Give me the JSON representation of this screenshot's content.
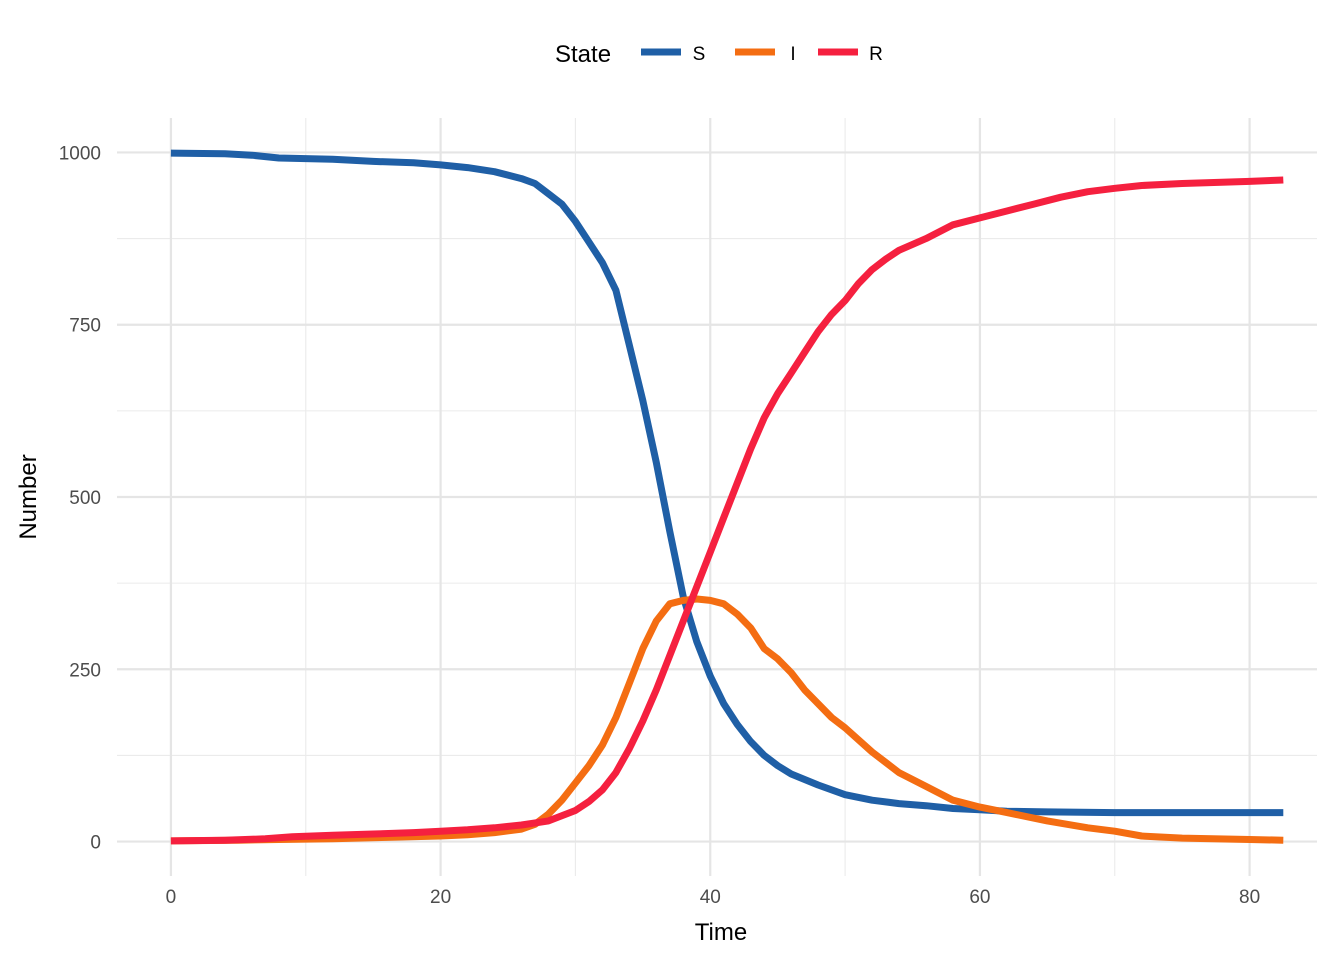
{
  "chart_data": {
    "type": "line",
    "xlabel": "Time",
    "ylabel": "Number",
    "xlim": [
      -4,
      85
    ],
    "ylim": [
      -50,
      1050
    ],
    "x_ticks": [
      0,
      20,
      40,
      60,
      80
    ],
    "x_tick_labels": [
      "0",
      "20",
      "40",
      "60",
      "80"
    ],
    "y_ticks": [
      0,
      250,
      500,
      750,
      1000
    ],
    "y_tick_labels": [
      "0",
      "250",
      "500",
      "750",
      "1000"
    ],
    "grid": true,
    "legend": {
      "title": "State",
      "position": "top"
    },
    "series": [
      {
        "name": "S",
        "color": "#1f5fa6",
        "points": [
          [
            0,
            999
          ],
          [
            4,
            998
          ],
          [
            6,
            996
          ],
          [
            8,
            992
          ],
          [
            12,
            990
          ],
          [
            15,
            987
          ],
          [
            18,
            985
          ],
          [
            20,
            982
          ],
          [
            22,
            978
          ],
          [
            24,
            972
          ],
          [
            26,
            962
          ],
          [
            27,
            955
          ],
          [
            28,
            940
          ],
          [
            29,
            925
          ],
          [
            30,
            900
          ],
          [
            31,
            870
          ],
          [
            32,
            840
          ],
          [
            33,
            800
          ],
          [
            34,
            720
          ],
          [
            35,
            640
          ],
          [
            36,
            550
          ],
          [
            37,
            450
          ],
          [
            38,
            355
          ],
          [
            39,
            290
          ],
          [
            40,
            240
          ],
          [
            41,
            200
          ],
          [
            42,
            170
          ],
          [
            43,
            145
          ],
          [
            44,
            125
          ],
          [
            45,
            110
          ],
          [
            46,
            98
          ],
          [
            48,
            82
          ],
          [
            50,
            68
          ],
          [
            52,
            60
          ],
          [
            54,
            55
          ],
          [
            56,
            52
          ],
          [
            58,
            48
          ],
          [
            60,
            46
          ],
          [
            62,
            44
          ],
          [
            65,
            43
          ],
          [
            70,
            42
          ],
          [
            75,
            42
          ],
          [
            82.5,
            42
          ]
        ]
      },
      {
        "name": "I",
        "color": "#f46d12",
        "points": [
          [
            0,
            1
          ],
          [
            5,
            2
          ],
          [
            8,
            3
          ],
          [
            12,
            4
          ],
          [
            16,
            6
          ],
          [
            20,
            8
          ],
          [
            22,
            10
          ],
          [
            24,
            13
          ],
          [
            26,
            18
          ],
          [
            27,
            25
          ],
          [
            28,
            40
          ],
          [
            29,
            60
          ],
          [
            30,
            85
          ],
          [
            31,
            110
          ],
          [
            32,
            140
          ],
          [
            33,
            180
          ],
          [
            34,
            230
          ],
          [
            35,
            280
          ],
          [
            36,
            320
          ],
          [
            37,
            345
          ],
          [
            38,
            350
          ],
          [
            39,
            352
          ],
          [
            40,
            350
          ],
          [
            41,
            345
          ],
          [
            42,
            330
          ],
          [
            43,
            310
          ],
          [
            44,
            280
          ],
          [
            45,
            265
          ],
          [
            46,
            245
          ],
          [
            47,
            220
          ],
          [
            48,
            200
          ],
          [
            49,
            180
          ],
          [
            50,
            165
          ],
          [
            52,
            130
          ],
          [
            54,
            100
          ],
          [
            56,
            80
          ],
          [
            58,
            60
          ],
          [
            60,
            50
          ],
          [
            62,
            42
          ],
          [
            65,
            30
          ],
          [
            68,
            20
          ],
          [
            70,
            15
          ],
          [
            72,
            8
          ],
          [
            75,
            5
          ],
          [
            80,
            3
          ],
          [
            82.5,
            2
          ]
        ]
      },
      {
        "name": "R",
        "color": "#f5203f",
        "points": [
          [
            0,
            1
          ],
          [
            4,
            2
          ],
          [
            7,
            4
          ],
          [
            9,
            7
          ],
          [
            12,
            9
          ],
          [
            15,
            11
          ],
          [
            18,
            13
          ],
          [
            20,
            15
          ],
          [
            22,
            17
          ],
          [
            24,
            20
          ],
          [
            26,
            24
          ],
          [
            28,
            30
          ],
          [
            30,
            45
          ],
          [
            31,
            58
          ],
          [
            32,
            75
          ],
          [
            33,
            100
          ],
          [
            34,
            135
          ],
          [
            35,
            175
          ],
          [
            36,
            220
          ],
          [
            37,
            270
          ],
          [
            38,
            320
          ],
          [
            39,
            370
          ],
          [
            40,
            420
          ],
          [
            41,
            470
          ],
          [
            42,
            520
          ],
          [
            43,
            570
          ],
          [
            44,
            615
          ],
          [
            45,
            650
          ],
          [
            46,
            680
          ],
          [
            47,
            710
          ],
          [
            48,
            740
          ],
          [
            49,
            765
          ],
          [
            50,
            785
          ],
          [
            51,
            810
          ],
          [
            52,
            830
          ],
          [
            53,
            845
          ],
          [
            54,
            858
          ],
          [
            56,
            875
          ],
          [
            58,
            895
          ],
          [
            60,
            905
          ],
          [
            62,
            915
          ],
          [
            64,
            925
          ],
          [
            66,
            935
          ],
          [
            68,
            943
          ],
          [
            70,
            948
          ],
          [
            72,
            952
          ],
          [
            75,
            955
          ],
          [
            80,
            958
          ],
          [
            82.5,
            960
          ]
        ]
      }
    ]
  }
}
